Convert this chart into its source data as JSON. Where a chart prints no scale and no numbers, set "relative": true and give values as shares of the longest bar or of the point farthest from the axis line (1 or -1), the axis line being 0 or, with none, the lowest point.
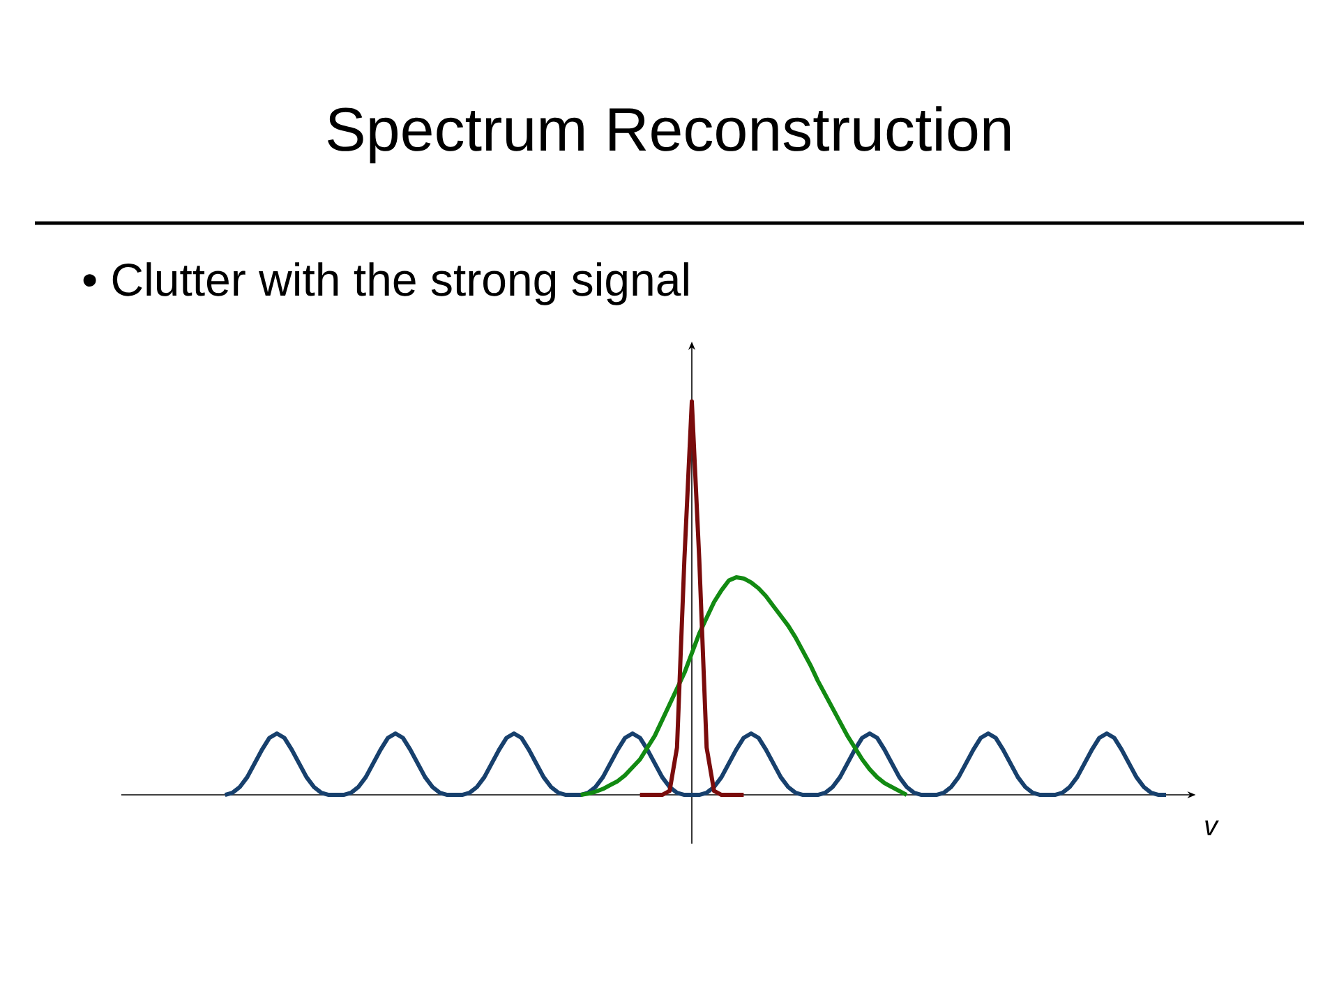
{
  "chart_data": {
    "type": "line",
    "title": "Spectrum Reconstruction",
    "subtitle": "• Clutter with the strong signal",
    "xlabel": "v",
    "relative": true,
    "categories": [
      null,
      null,
      null,
      null,
      null,
      null,
      null,
      null,
      null,
      null,
      null,
      null,
      null,
      null,
      null,
      null,
      null,
      null,
      null,
      null,
      null,
      null,
      null,
      null,
      null,
      null,
      null,
      null,
      null,
      null,
      null,
      null,
      null,
      null,
      null,
      null,
      null,
      null,
      null,
      null,
      null,
      null,
      null,
      null,
      null,
      null,
      null,
      null,
      null,
      null,
      null,
      null,
      null,
      null,
      null,
      null,
      null,
      null,
      null,
      null,
      null,
      null,
      null,
      null,
      null,
      null,
      null,
      null,
      null,
      null,
      null,
      null,
      null,
      null,
      null,
      null,
      null,
      null,
      null,
      null,
      null,
      null,
      null,
      null,
      null,
      null,
      null,
      null,
      null,
      null,
      null,
      null,
      null,
      null,
      null,
      null,
      null,
      null,
      null,
      null,
      null,
      null,
      null,
      null,
      null,
      null,
      null,
      null,
      null,
      null,
      null,
      null,
      null,
      null,
      null,
      null,
      null,
      null,
      null,
      null,
      null,
      null,
      null,
      null,
      null,
      null,
      null,
      null,
      null,
      null,
      null,
      null,
      null,
      null,
      null,
      null,
      null,
      null,
      null,
      null,
      null,
      null,
      null,
      null,
      null,
      null
    ],
    "series": [
      {
        "color": "#17406d",
        "values": [
          null,
          null,
          null,
          null,
          null,
          null,
          null,
          null,
          null,
          null,
          null,
          null,
          null,
          null,
          0,
          0.005,
          0.02,
          0.045,
          0.08,
          0.115,
          0.145,
          0.156,
          0.145,
          0.115,
          0.08,
          0.045,
          0.02,
          0.005,
          0,
          0,
          0,
          0.005,
          0.02,
          0.045,
          0.08,
          0.115,
          0.145,
          0.156,
          0.145,
          0.115,
          0.08,
          0.045,
          0.02,
          0.005,
          0,
          0,
          0,
          0.005,
          0.02,
          0.045,
          0.08,
          0.115,
          0.145,
          0.156,
          0.145,
          0.115,
          0.08,
          0.045,
          0.02,
          0.005,
          0,
          0,
          0,
          0.005,
          0.02,
          0.045,
          0.08,
          0.115,
          0.145,
          0.156,
          0.145,
          0.115,
          0.08,
          0.045,
          0.02,
          0.005,
          0,
          0,
          0,
          0.005,
          0.02,
          0.045,
          0.08,
          0.115,
          0.145,
          0.156,
          0.145,
          0.115,
          0.08,
          0.045,
          0.02,
          0.005,
          0,
          0,
          0,
          0.005,
          0.02,
          0.045,
          0.08,
          0.115,
          0.145,
          0.156,
          0.145,
          0.115,
          0.08,
          0.045,
          0.02,
          0.005,
          0,
          0,
          0,
          0.005,
          0.02,
          0.045,
          0.08,
          0.115,
          0.145,
          0.156,
          0.145,
          0.115,
          0.08,
          0.045,
          0.02,
          0.005,
          0,
          0,
          0,
          0.005,
          0.02,
          0.045,
          0.08,
          0.115,
          0.145,
          0.156,
          0.145,
          0.115,
          0.08,
          0.045,
          0.02,
          0.005,
          0,
          0,
          null,
          null,
          null,
          null
        ]
      },
      {
        "color": "#128a12",
        "values": [
          null,
          null,
          null,
          null,
          null,
          null,
          null,
          null,
          null,
          null,
          null,
          null,
          null,
          null,
          null,
          null,
          null,
          null,
          null,
          null,
          null,
          null,
          null,
          null,
          null,
          null,
          null,
          null,
          null,
          null,
          null,
          null,
          null,
          null,
          null,
          null,
          null,
          null,
          null,
          null,
          null,
          null,
          null,
          null,
          null,
          null,
          null,
          null,
          null,
          null,
          null,
          null,
          null,
          null,
          null,
          null,
          null,
          null,
          null,
          null,
          null,
          null,
          0,
          0.003,
          0.008,
          0.015,
          0.025,
          0.035,
          0.05,
          0.07,
          0.09,
          0.12,
          0.15,
          0.19,
          0.23,
          0.27,
          0.31,
          0.36,
          0.41,
          0.45,
          0.49,
          0.52,
          0.545,
          0.553,
          0.55,
          0.54,
          0.525,
          0.505,
          0.48,
          0.455,
          0.43,
          0.4,
          0.365,
          0.33,
          0.29,
          0.255,
          0.22,
          0.185,
          0.15,
          0.12,
          0.09,
          0.065,
          0.045,
          0.03,
          0.02,
          0.01,
          0,
          null,
          null,
          null,
          null,
          null,
          null,
          null,
          null,
          null,
          null,
          null,
          null,
          null,
          null,
          null,
          null,
          null,
          null,
          null,
          null,
          null,
          null,
          null,
          null,
          null,
          null,
          null,
          null,
          null,
          null,
          null,
          null,
          null,
          null,
          null,
          null,
          null,
          null,
          null
        ]
      },
      {
        "color": "#7a0c0c",
        "values": [
          null,
          null,
          null,
          null,
          null,
          null,
          null,
          null,
          null,
          null,
          null,
          null,
          null,
          null,
          null,
          null,
          null,
          null,
          null,
          null,
          null,
          null,
          null,
          null,
          null,
          null,
          null,
          null,
          null,
          null,
          null,
          null,
          null,
          null,
          null,
          null,
          null,
          null,
          null,
          null,
          null,
          null,
          null,
          null,
          null,
          null,
          null,
          null,
          null,
          null,
          null,
          null,
          null,
          null,
          null,
          null,
          null,
          null,
          null,
          null,
          null,
          null,
          null,
          null,
          null,
          null,
          null,
          null,
          null,
          null,
          0,
          0,
          0,
          0,
          0.01,
          0.12,
          0.6,
          1,
          0.6,
          0.12,
          0.01,
          0,
          0,
          0,
          0,
          null,
          null,
          null,
          null,
          null,
          null,
          null,
          null,
          null,
          null,
          null,
          null,
          null,
          null,
          null,
          null,
          null,
          null,
          null,
          null,
          null,
          null,
          null,
          null,
          null,
          null,
          null,
          null,
          null,
          null,
          null,
          null,
          null,
          null,
          null,
          null,
          null,
          null,
          null,
          null,
          null,
          null,
          null,
          null,
          null,
          null,
          null,
          null,
          null,
          null,
          null,
          null,
          null,
          null,
          null,
          null,
          null,
          null,
          null,
          null,
          null
        ]
      }
    ]
  }
}
